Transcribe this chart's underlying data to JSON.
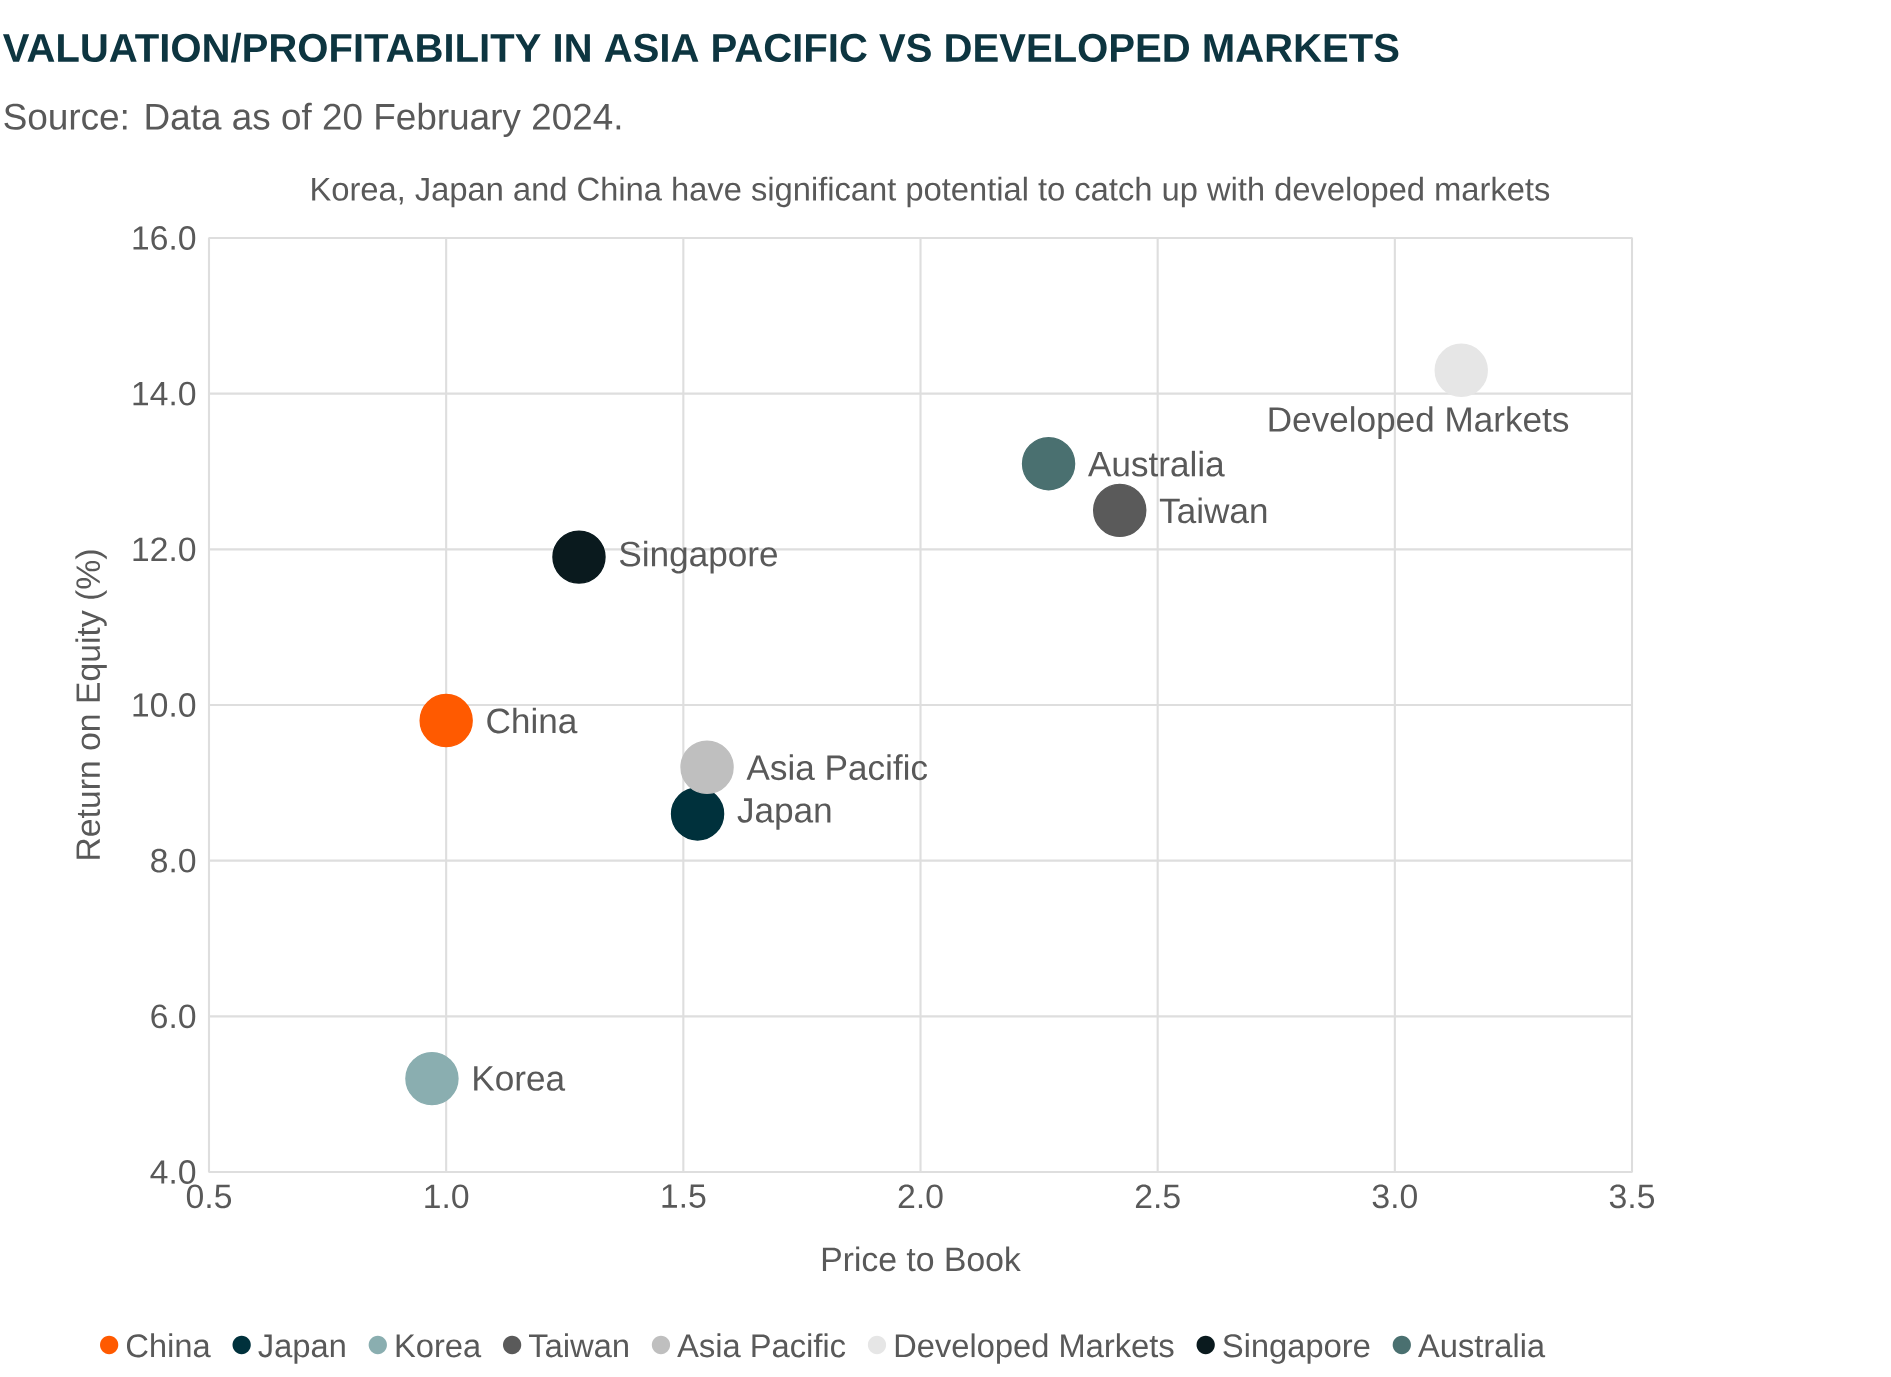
{
  "chart_data": {
    "type": "scatter",
    "title": "VALUATION/PROFITABILITY IN ASIA PACIFIC VS DEVELOPED MARKETS",
    "subtitle": "Korea, Japan and China have significant potential to catch up with developed markets",
    "annotations": [
      "Source: Data as of 20 February 2024."
    ],
    "xlabel": "Price to Book",
    "ylabel": "Return on Equity (%)",
    "xlim": [
      0.5,
      3.5
    ],
    "ylim": [
      4,
      16
    ],
    "xticks": [
      0.5,
      {
        "value": 1,
        "label": "1.0"
      },
      1.5,
      {
        "value": 2,
        "label": "2.0"
      },
      2.5,
      {
        "value": 3,
        "label": "3.0"
      },
      3.5
    ],
    "yticks": [
      {
        "value": 4,
        "label": "4.0"
      },
      {
        "value": 6,
        "label": "6.0"
      },
      {
        "value": 8,
        "label": "8.0"
      },
      {
        "value": 10,
        "label": "10.0"
      },
      {
        "value": 12,
        "label": "12.0"
      },
      {
        "value": 14,
        "label": "14.0"
      },
      {
        "value": 16,
        "label": "16.0"
      }
    ],
    "grid": true,
    "legend": "bottom",
    "marker": "circle",
    "series": [
      {
        "name": "China",
        "color": "#ff5a00",
        "x": [
          1.0
        ],
        "values": [
          9.8
        ]
      },
      {
        "name": "Japan",
        "color": "#00313c",
        "x": [
          1.53
        ],
        "values": [
          8.6
        ]
      },
      {
        "name": "Korea",
        "color": "#8aaeb0",
        "x": [
          0.97
        ],
        "values": [
          5.2
        ]
      },
      {
        "name": "Taiwan",
        "color": "#5a5a5a",
        "x": [
          2.42
        ],
        "values": [
          12.5
        ]
      },
      {
        "name": "Asia Pacific",
        "color": "#bfbfbf",
        "x": [
          1.55
        ],
        "values": [
          9.2
        ]
      },
      {
        "name": "Developed Markets",
        "color": "#e6e6e6",
        "x": [
          3.14
        ],
        "values": [
          14.3
        ]
      },
      {
        "name": "Singapore",
        "color": "#0a1a1e",
        "x": [
          1.28
        ],
        "values": [
          11.9
        ]
      },
      {
        "name": "Australia",
        "color": "#4a7070",
        "x": [
          2.27
        ],
        "values": [
          13.1
        ]
      }
    ]
  }
}
